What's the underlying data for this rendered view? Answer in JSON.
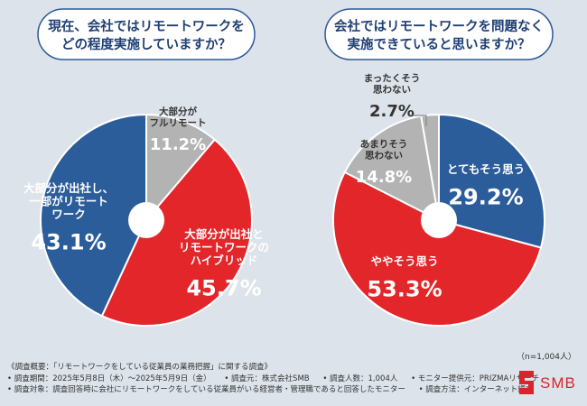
{
  "questions": {
    "left": [
      "現在、会社ではリモートワークを",
      "どの程度実施していますか？"
    ],
    "right": [
      "会社ではリモートワークを問題なく",
      "実施できていると思いますか？"
    ]
  },
  "chart_data": [
    {
      "type": "pie",
      "title": "現在、会社ではリモートワークをどの程度実施していますか？",
      "slices": [
        {
          "label": "大部分がフルリモート",
          "label_lines": [
            "大部分が",
            "フルリモート"
          ],
          "value": 11.2,
          "value_text": "11.2%",
          "color": "#b3b3b3"
        },
        {
          "label": "大部分が出社とリモートワークのハイブリッド",
          "label_lines": [
            "大部分が出社と",
            "リモートワークの",
            "ハイブリッド"
          ],
          "value": 45.7,
          "value_text": "45.7%",
          "color": "#e3262a"
        },
        {
          "label": "大部分が出社し、一部がリモートワーク",
          "label_lines": [
            "大部分が出社し、",
            "一部がリモート",
            "ワーク"
          ],
          "value": 43.1,
          "value_text": "43.1%",
          "color": "#2b5d9b"
        }
      ]
    },
    {
      "type": "pie",
      "title": "会社ではリモートワークを問題なく実施できていると思いますか？",
      "slices": [
        {
          "label": "とてもそう思う",
          "label_lines": [
            "とてもそう思う"
          ],
          "value": 29.2,
          "value_text": "29.2%",
          "color": "#2b5d9b"
        },
        {
          "label": "ややそう思う",
          "label_lines": [
            "ややそう思う"
          ],
          "value": 53.3,
          "value_text": "53.3%",
          "color": "#e3262a"
        },
        {
          "label": "あまりそう思わない",
          "label_lines": [
            "あまりそう",
            "思わない"
          ],
          "value": 14.8,
          "value_text": "14.8%",
          "color": "#b3b3b3"
        },
        {
          "label": "まったくそう思わない",
          "label_lines": [
            "まったくそう",
            "思わない"
          ],
          "value": 2.7,
          "value_text": "2.7%",
          "color": "#b3b3b3"
        }
      ]
    }
  ],
  "sample_size": "（n=1,004人）",
  "footer": {
    "line1": "《調査概要：「リモートワークをしている従業員の業務把握」に関する調査》",
    "line2": [
      "• 調査期間：2025年5月8日（木）～2025年5月9日（金）",
      "• 調査元：株式会社SMB",
      "• 調査人数：1,004人",
      "• モニター提供元：PRIZMAリサーチ"
    ],
    "line3": [
      "• 調査対象：調査回答時に会社にリモートワークをしている従業員がいる経営者・管理職であると回答したモニター",
      "• 調査方法：インターネット調査"
    ]
  },
  "logo": {
    "text": "SMB",
    "color": "#d7262b"
  }
}
